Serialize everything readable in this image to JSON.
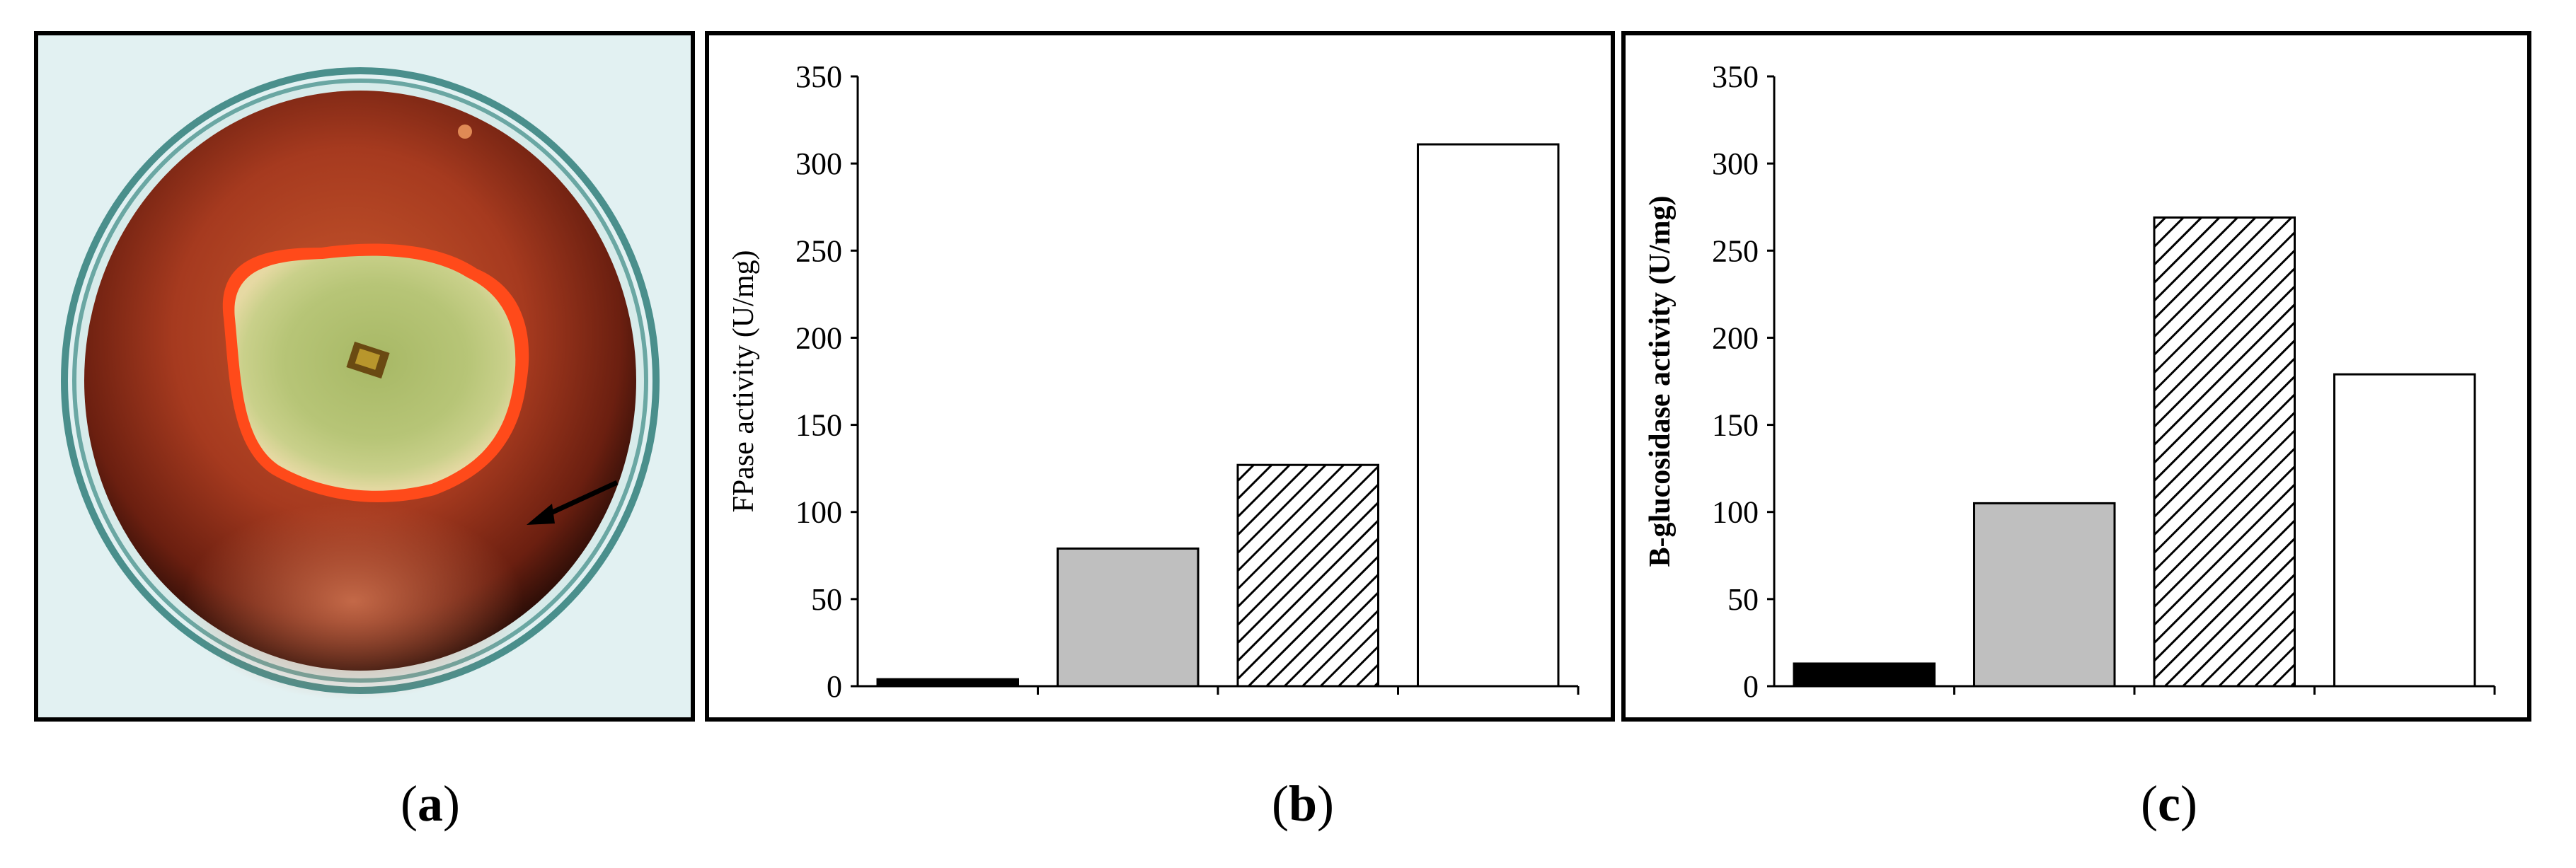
{
  "captions": {
    "a": "a",
    "b": "b",
    "c": "c"
  },
  "colors": {
    "bar_black": "#000000",
    "bar_gray": "#bfbfbf",
    "bar_hatched": "#000000",
    "bar_white": "#ffffff"
  },
  "chart_data": [
    {
      "type": "bar",
      "panel": "b",
      "title": "",
      "xlabel": "",
      "ylabel": "FPase activity (U/mg)",
      "ylim": [
        0,
        350
      ],
      "yticks": [
        0,
        50,
        100,
        150,
        200,
        250,
        300,
        350
      ],
      "categories": [
        "",
        "",
        "",
        ""
      ],
      "values": [
        4,
        79,
        127,
        311
      ],
      "bar_styles": [
        "black",
        "gray",
        "hatched",
        "white"
      ],
      "grid": false
    },
    {
      "type": "bar",
      "panel": "c",
      "title": "",
      "xlabel": "",
      "ylabel": "B-glucosidase activity (U/mg)",
      "ylim": [
        0,
        350
      ],
      "yticks": [
        0,
        50,
        100,
        150,
        200,
        250,
        300,
        350
      ],
      "categories": [
        "",
        "",
        "",
        ""
      ],
      "values": [
        13,
        105,
        269,
        179
      ],
      "bar_styles": [
        "black",
        "gray",
        "hatched",
        "white"
      ],
      "grid": false
    }
  ]
}
